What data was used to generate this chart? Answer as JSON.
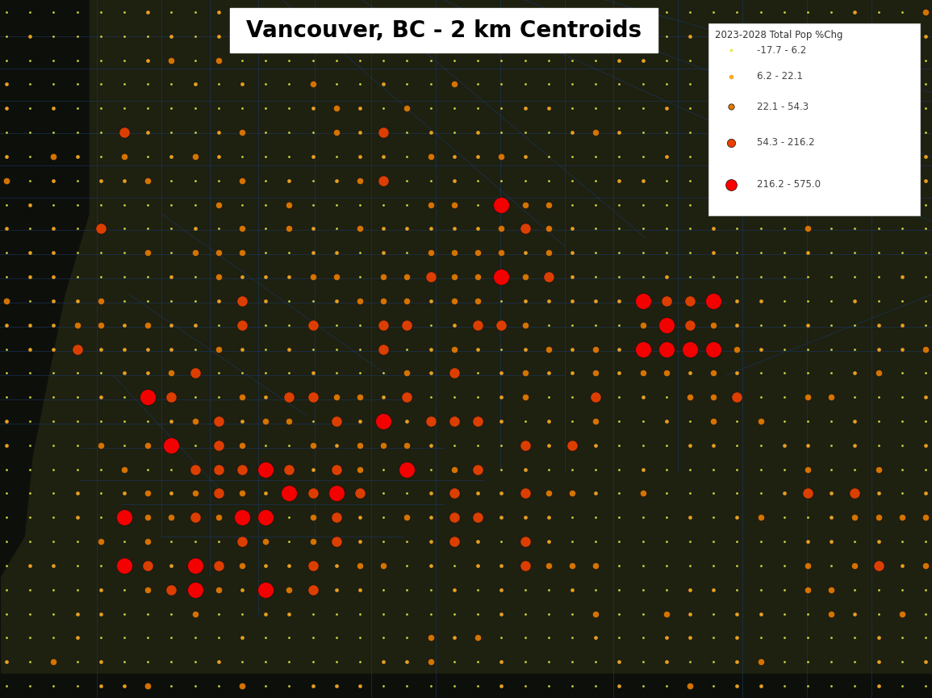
{
  "title": "Vancouver, BC - 2 km Centroids",
  "legend_title": "2023-2028 Total Pop %Chg",
  "legend_entries": [
    {
      "label": "-17.7 - 6.2",
      "color": "#e8e840",
      "marker_size": 6
    },
    {
      "label": "6.2 - 22.1",
      "color": "#f5a820",
      "marker_size": 14
    },
    {
      "label": "22.1 - 54.3",
      "color": "#e07800",
      "marker_size": 28
    },
    {
      "label": "54.3 - 216.2",
      "color": "#e84000",
      "marker_size": 55
    },
    {
      "label": "216.2 - 575.0",
      "color": "#ff0000",
      "marker_size": 100
    }
  ],
  "background_color": "#111111",
  "map_bg_color": "#1e2010",
  "title_fontsize": 20,
  "title_fontweight": "bold",
  "fig_width": 11.55,
  "fig_height": 8.65,
  "dot_colors": [
    "#e8e840",
    "#f5a820",
    "#e07800",
    "#e84000",
    "#ff0000"
  ],
  "dot_sizes": [
    3,
    10,
    35,
    90,
    200
  ],
  "n_cols": 40,
  "n_rows": 29
}
